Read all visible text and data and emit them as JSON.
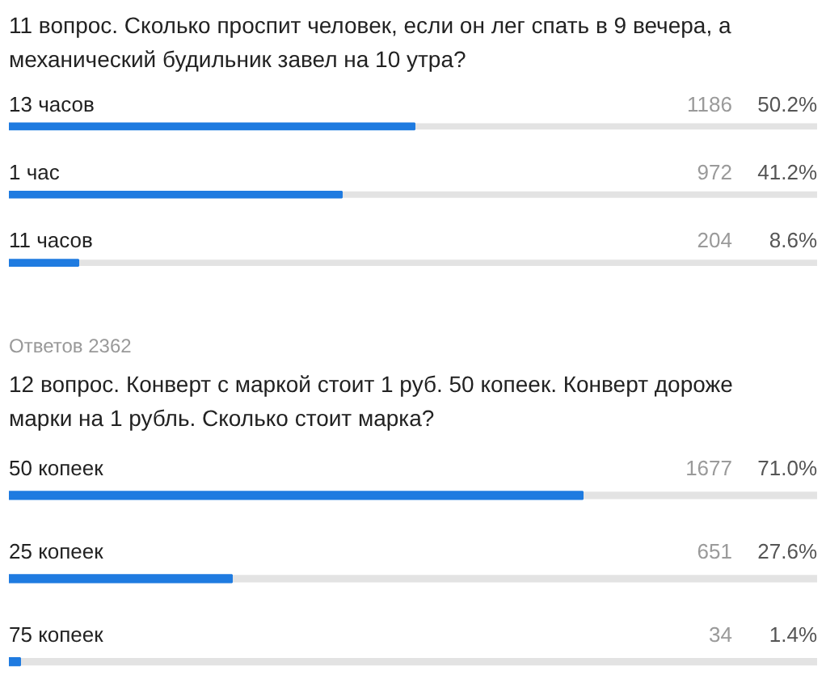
{
  "chart_data": [
    {
      "type": "bar",
      "orientation": "horizontal",
      "title": "11 вопрос. Сколько проспит человек, если он лег спать в 9 вечера, а\nмеханический будильник завел на 10 утра?",
      "categories": [
        "13 часов",
        "1 час",
        "11 часов"
      ],
      "values": [
        50.2,
        41.2,
        8.6
      ],
      "value_labels": [
        "50.2%",
        "41.2%",
        "8.6%"
      ],
      "color": "#1f7be0",
      "xlim": [
        0,
        100
      ],
      "tick_labels": false,
      "grid": false,
      "annotations": [
        "1186",
        "972",
        "204",
        "Ответов 2362"
      ]
    },
    {
      "type": "bar",
      "orientation": "horizontal",
      "title": "12 вопрос. Конверт с маркой стоит 1 руб. 50 копеек. Конверт дороже\nмарки на 1 рубль. Сколько стоит марка?",
      "categories": [
        "50 копеек",
        "25 копеек",
        "75 копеек"
      ],
      "values": [
        71.0,
        27.6,
        1.4
      ],
      "value_labels": [
        "71.0%",
        "27.6%",
        "1.4%"
      ],
      "color": "#1f7be0",
      "xlim": [
        0,
        100
      ],
      "tick_labels": false,
      "grid": false,
      "annotations": [
        "1677",
        "651",
        "34"
      ]
    }
  ]
}
